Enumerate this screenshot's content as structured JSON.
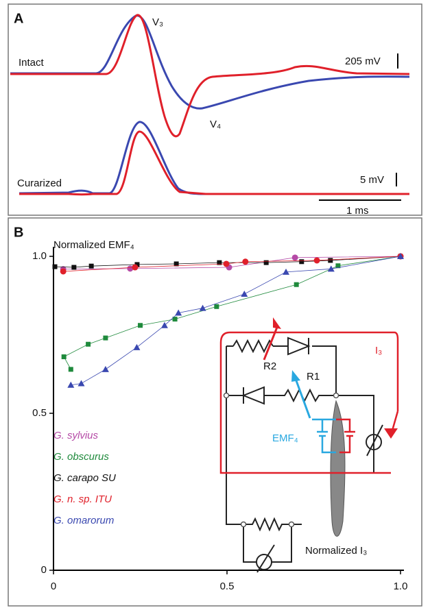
{
  "panel_a": {
    "label": "A",
    "peak_label": "V₃",
    "intact_label": "Intact",
    "intact_scale": "205 mV",
    "trough_label": "V₄",
    "curarized_label": "Curarized",
    "curarized_scale": "5 mV",
    "time_scale": "1 ms"
  },
  "inset": {
    "r2": "R2",
    "r1": "R1",
    "current": "I₃",
    "emf": "EMF₄"
  },
  "chart_data": {
    "type": "line",
    "panel_label": "B",
    "y_label": "Normalized EMF₄",
    "x_label": "Normalized I₃",
    "xlim": [
      0,
      1
    ],
    "ylim": [
      0,
      1.03
    ],
    "xticks": [
      0,
      0.5,
      {
        "value": 1,
        "label": "1.0"
      }
    ],
    "yticks": [
      0,
      0.5,
      {
        "value": 1,
        "label": "1.0"
      }
    ],
    "series": [
      {
        "name": "G. sylvius",
        "color": "#b54aa6",
        "marker": "circle",
        "x": [
          0.028,
          0.221,
          0.506,
          0.696,
          1.0
        ],
        "values": [
          0.959,
          0.961,
          0.965,
          0.996,
          1.0
        ]
      },
      {
        "name": "G. obscurus",
        "color": "#1f8a3c",
        "marker": "square",
        "x": [
          0.05,
          0.03,
          0.1,
          0.15,
          0.25,
          0.35,
          0.47,
          0.7,
          0.82,
          1.0
        ],
        "values": [
          0.64,
          0.68,
          0.72,
          0.74,
          0.78,
          0.8,
          0.84,
          0.91,
          0.97,
          1.0
        ]
      },
      {
        "name": "G. carapo SU",
        "color": "#111111",
        "marker": "square",
        "x": [
          0.004,
          0.059,
          0.109,
          0.241,
          0.354,
          0.478,
          0.613,
          0.715,
          0.798,
          1.0
        ],
        "values": [
          0.967,
          0.965,
          0.969,
          0.974,
          0.976,
          0.98,
          0.98,
          0.983,
          0.987,
          1.0
        ]
      },
      {
        "name": "G. n. sp. ITU",
        "color": "#e0202a",
        "marker": "circle",
        "x": [
          0.028,
          0.235,
          0.498,
          0.553,
          0.759,
          1.0
        ],
        "values": [
          0.952,
          0.965,
          0.976,
          0.983,
          0.987,
          1.0
        ]
      },
      {
        "name": "G. omarorum",
        "color": "#3a48b0",
        "marker": "triangle",
        "x": [
          0.05,
          0.08,
          0.15,
          0.24,
          0.32,
          0.36,
          0.43,
          0.55,
          0.67,
          0.8,
          1.0
        ],
        "values": [
          0.59,
          0.595,
          0.64,
          0.71,
          0.78,
          0.82,
          0.835,
          0.88,
          0.95,
          0.96,
          1.0
        ]
      }
    ]
  }
}
